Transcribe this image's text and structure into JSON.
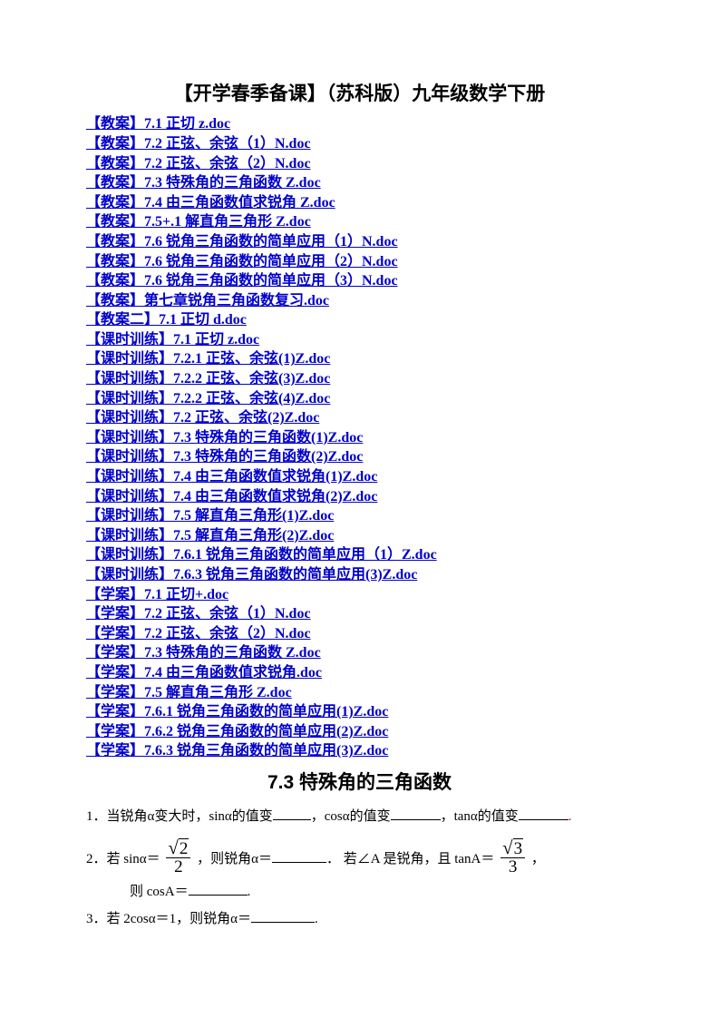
{
  "title": "【开学春季备课】（苏科版）九年级数学下册",
  "links": [
    "【教案】7.1 正切 z.doc",
    "【教案】7.2 正弦、余弦（1）N.doc",
    "【教案】7.2 正弦、余弦（2）N.doc",
    "【教案】7.3 特殊角的三角函数 Z.doc",
    "【教案】7.4 由三角函数值求锐角 Z.doc",
    "【教案】7.5+.1 解直角三角形 Z.doc",
    "【教案】7.6 锐角三角函数的简单应用（1）N.doc",
    "【教案】7.6 锐角三角函数的简单应用（2）N.doc",
    "【教案】7.6 锐角三角函数的简单应用（3）N.doc",
    "【教案】第七章锐角三角函数复习.doc",
    "【教案二】7.1 正切 d.doc",
    "【课时训练】7.1 正切 z.doc",
    "【课时训练】7.2.1 正弦、余弦(1)Z.doc",
    "【课时训练】7.2.2 正弦、余弦(3)Z.doc",
    "【课时训练】7.2.2 正弦、余弦(4)Z.doc",
    "【课时训练】7.2 正弦、余弦(2)Z.doc",
    "【课时训练】7.3 特殊角的三角函数(1)Z.doc",
    "【课时训练】7.3 特殊角的三角函数(2)Z.doc",
    "【课时训练】7.4 由三角函数值求锐角(1)Z.doc",
    "【课时训练】7.4 由三角函数值求锐角(2)Z.doc",
    "【课时训练】7.5 解直角三角形(1)Z.doc",
    "【课时训练】7.5 解直角三角形(2)Z.doc",
    "【课时训练】7.6.1 锐角三角函数的简单应用（1）Z.doc",
    "【课时训练】7.6.3 锐角三角函数的简单应用(3)Z.doc",
    "【学案】7.1 正切+.doc",
    "【学案】7.2 正弦、余弦（1）N.doc",
    "【学案】7.2 正弦、余弦（2）N.doc",
    "【学案】7.3 特殊角的三角函数 Z.doc",
    "【学案】7.4 由三角函数值求锐角.doc",
    "【学案】7.5 解直角三角形 Z.doc",
    "【学案】7.6.1 锐角三角函数的简单应用(1)Z.doc",
    "【学案】7.6.2 锐角三角函数的简单应用(2)Z.doc",
    "【学案】7.6.3 锐角三角函数的简单应用(3)Z.doc"
  ],
  "subtitle": "7.3 特殊角的三角函数",
  "q1": {
    "pre": "1．当锐角α变大时，sinα的值变",
    "mid1": "，cosα的值变",
    "mid2": "，tanα的值变",
    "end": "."
  },
  "q2": {
    "pre": "2．若 sinα＝ ",
    "frac1_num": "2",
    "frac1_den": "2",
    "mid1": " ，则锐角α＝",
    "mid2": "．  若∠A 是锐角，且 tanA＝ ",
    "frac2_num": "3",
    "frac2_den": "3",
    "mid3": " ，",
    "line2_pre": "则 cosA＝",
    "line2_end": "."
  },
  "q3": {
    "pre": "3．若 2cosα＝1，则锐角α＝",
    "end": "."
  },
  "colors": {
    "link": "#0000cc",
    "text": "#000000",
    "bg": "#ffffff"
  }
}
